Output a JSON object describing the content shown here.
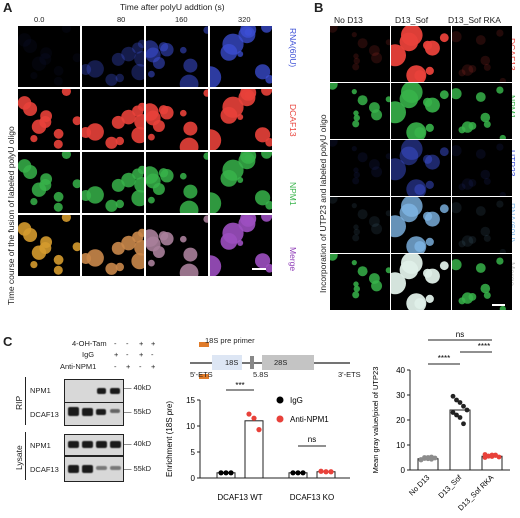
{
  "panel_a": {
    "label": "A",
    "title": "Time after polyU addtion (s)",
    "times": [
      "0.0",
      "80",
      "160",
      "320"
    ],
    "side_label": "Time course of the fusion of labeled polyU oligo",
    "channels": [
      {
        "label": "RNA(60U)",
        "color": "#3c4fd6"
      },
      {
        "label": "DCAF13",
        "color": "#e8413a"
      },
      {
        "label": "NPM1",
        "color": "#37b34a"
      },
      {
        "label": "Merge",
        "color": "#8e3bb7"
      }
    ]
  },
  "panel_b": {
    "label": "B",
    "conditions": [
      "No D13",
      "D13_Sof",
      "D13_Sof RKA"
    ],
    "side_label": "Incorporation of UTP23 and labeled polyU oligo",
    "channels": [
      {
        "label": "DCAF13",
        "color": "#e8413a"
      },
      {
        "label": "NPM1",
        "color": "#37b34a"
      },
      {
        "label": "UTP23",
        "color": "#3c4fd6"
      },
      {
        "label": "RNA(60U)",
        "color": "#7fb7e6"
      },
      {
        "label": "Merge",
        "color": "#bdbdbd"
      }
    ]
  },
  "panel_c": {
    "label": "C",
    "row_labels": [
      "4-OH-Tam",
      "IgG",
      "Anti-NPM1"
    ],
    "row_values": [
      [
        "-",
        "-",
        "+",
        "+"
      ],
      [
        "+",
        "-",
        "+",
        "-"
      ],
      [
        "-",
        "+",
        "-",
        "+"
      ]
    ],
    "rip_label": "RIP",
    "lysate_label": "Lysate",
    "blot_labels": [
      "NPM1",
      "DCAF13",
      "NPM1",
      "DCAF13"
    ],
    "mw_labels": [
      "40kD",
      "55kD",
      "40kD",
      "55kD"
    ]
  },
  "schematic": {
    "primer_label": "18S pre primer",
    "segments": [
      "18S",
      "5.8S",
      "28S"
    ],
    "left_end": "5'-ETS",
    "right_end": "3'-ETS"
  },
  "chart_data": [
    {
      "type": "bar",
      "ylabel": "Enrichment (18S pre)",
      "categories": [
        "DCAF13 WT",
        "DCAF13 KO"
      ],
      "ylim": [
        0,
        15
      ],
      "yticks": [
        "0",
        "5",
        "10",
        "15"
      ],
      "series": [
        {
          "name": "IgG",
          "color": "#000000",
          "values": [
            1.0,
            1.0
          ],
          "points": [
            [
              1.0,
              1.0,
              1.0
            ],
            [
              1.0,
              1.0,
              1.0
            ]
          ]
        },
        {
          "name": "Anti-NPM1",
          "color": "#e8413a",
          "values": [
            11.0,
            1.2
          ],
          "points": [
            [
              12.3,
              11.5,
              9.3
            ],
            [
              1.3,
              1.2,
              1.2
            ]
          ]
        }
      ],
      "annotations": [
        "***",
        "ns"
      ]
    },
    {
      "type": "bar",
      "ylabel": "Mean gray value/pixel of UTP23",
      "categories": [
        "No D13",
        "D13_Sof",
        "D13_Sof RKA"
      ],
      "ylim": [
        0,
        40
      ],
      "yticks": [
        "0",
        "10",
        "20",
        "30",
        "40"
      ],
      "values": [
        4.5,
        24.0,
        5.5
      ],
      "points": [
        [
          4.0,
          5.0,
          4.5,
          5.2,
          4.8,
          4.2,
          4.6,
          5.0,
          4.3
        ],
        [
          29.5,
          28.0,
          27.0,
          25.5,
          24.0,
          23.0,
          22.0,
          21.0,
          18.5
        ],
        [
          5.0,
          5.5,
          6.0,
          5.8,
          5.2,
          6.2,
          5.6,
          5.4,
          6.0
        ]
      ],
      "point_colors": [
        "#8c8c8c",
        "#222222",
        "#e8413a"
      ],
      "annotations": [
        "ns",
        "****",
        "****"
      ]
    }
  ]
}
